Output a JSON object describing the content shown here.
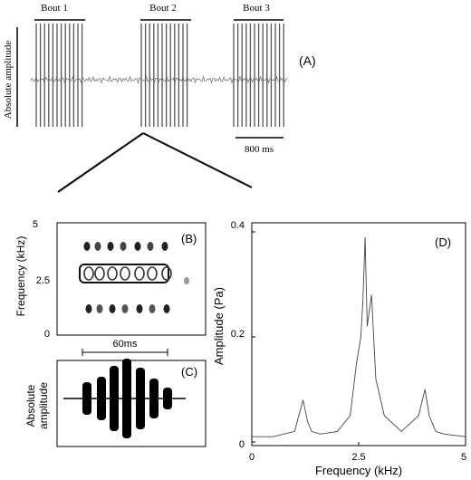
{
  "panelA": {
    "bouts": [
      "Bout 1",
      "Bout 2",
      "Bout 3"
    ],
    "ylabel": "Absolute amplitude",
    "scale_label": "800 ms",
    "panel_label": "(A)"
  },
  "panelB": {
    "panel_label": "(B)",
    "ylabel": "Frequency (kHz)",
    "yticks": [
      "5",
      "2.5",
      "0"
    ]
  },
  "time_scale": {
    "label": "60ms"
  },
  "panelC": {
    "panel_label": "(C)",
    "ylabel_line1": "Absolute",
    "ylabel_line2": "amplitude"
  },
  "panelD": {
    "panel_label": "(D)",
    "ylabel": "Amplitude (Pa)",
    "xlabel": "Frequency (kHz)",
    "yticks": [
      "0.4",
      "0.2",
      "0"
    ],
    "xticks": [
      "0",
      "2.5",
      "5"
    ]
  },
  "chart_data": {
    "type": "line",
    "xlabel": "Frequency (kHz)",
    "ylabel": "Amplitude (Pa)",
    "xlim": [
      0,
      5
    ],
    "ylim": [
      0,
      0.4
    ],
    "x": [
      0,
      0.5,
      1.0,
      1.1,
      1.2,
      1.3,
      1.4,
      1.6,
      2.0,
      2.3,
      2.45,
      2.55,
      2.6,
      2.65,
      2.7,
      2.8,
      2.9,
      3.1,
      3.5,
      3.9,
      4.05,
      4.15,
      4.3,
      4.5,
      5.0
    ],
    "y": [
      0.01,
      0.01,
      0.02,
      0.05,
      0.08,
      0.04,
      0.02,
      0.015,
      0.02,
      0.05,
      0.15,
      0.2,
      0.27,
      0.39,
      0.22,
      0.28,
      0.12,
      0.05,
      0.02,
      0.05,
      0.1,
      0.05,
      0.02,
      0.015,
      0.01
    ]
  }
}
